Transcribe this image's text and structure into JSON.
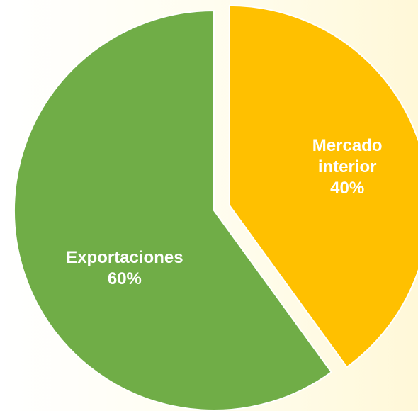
{
  "chart_data": {
    "type": "pie",
    "categories": [
      "Mercado interior",
      "Exportaciones"
    ],
    "values": [
      40,
      60
    ],
    "value_labels": [
      "40%",
      "60%"
    ],
    "colors": [
      "#FFC000",
      "#70AD47"
    ],
    "exploded": [
      true,
      false
    ]
  }
}
